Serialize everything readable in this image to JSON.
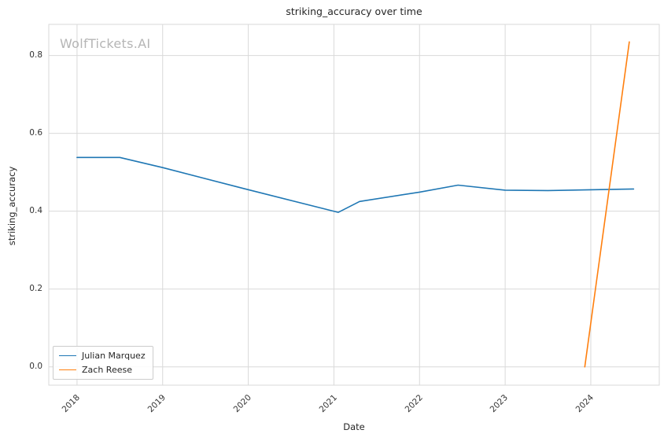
{
  "figure": {
    "watermark": "WolfTickets.AI"
  },
  "chart_data": {
    "type": "line",
    "title": "striking_accuracy over time",
    "xlabel": "Date",
    "ylabel": "striking_accuracy",
    "grid": true,
    "legend_position": "lower left",
    "xlim": [
      2017.67,
      2024.8
    ],
    "ylim": [
      -0.047,
      0.88
    ],
    "xticks": [
      2018,
      2019,
      2020,
      2021,
      2022,
      2023,
      2024
    ],
    "xtick_labels": [
      "2018",
      "2019",
      "2020",
      "2021",
      "2022",
      "2023",
      "2024"
    ],
    "yticks": [
      0.0,
      0.2,
      0.4,
      0.6,
      0.8
    ],
    "ytick_labels": [
      "0.0",
      "0.2",
      "0.4",
      "0.6",
      "0.8"
    ],
    "series": [
      {
        "name": "Julian Marquez",
        "color": "#1f77b4",
        "x": [
          2018.0,
          2018.5,
          2019.0,
          2019.95,
          2021.05,
          2021.3,
          2022.0,
          2022.45,
          2023.0,
          2023.5,
          2024.5
        ],
        "y": [
          0.538,
          0.538,
          0.512,
          0.458,
          0.397,
          0.425,
          0.449,
          0.467,
          0.454,
          0.453,
          0.457
        ]
      },
      {
        "name": "Zach Reese",
        "color": "#ff7f0e",
        "x": [
          2023.93,
          2024.45
        ],
        "y": [
          0.0,
          0.835
        ]
      }
    ]
  }
}
